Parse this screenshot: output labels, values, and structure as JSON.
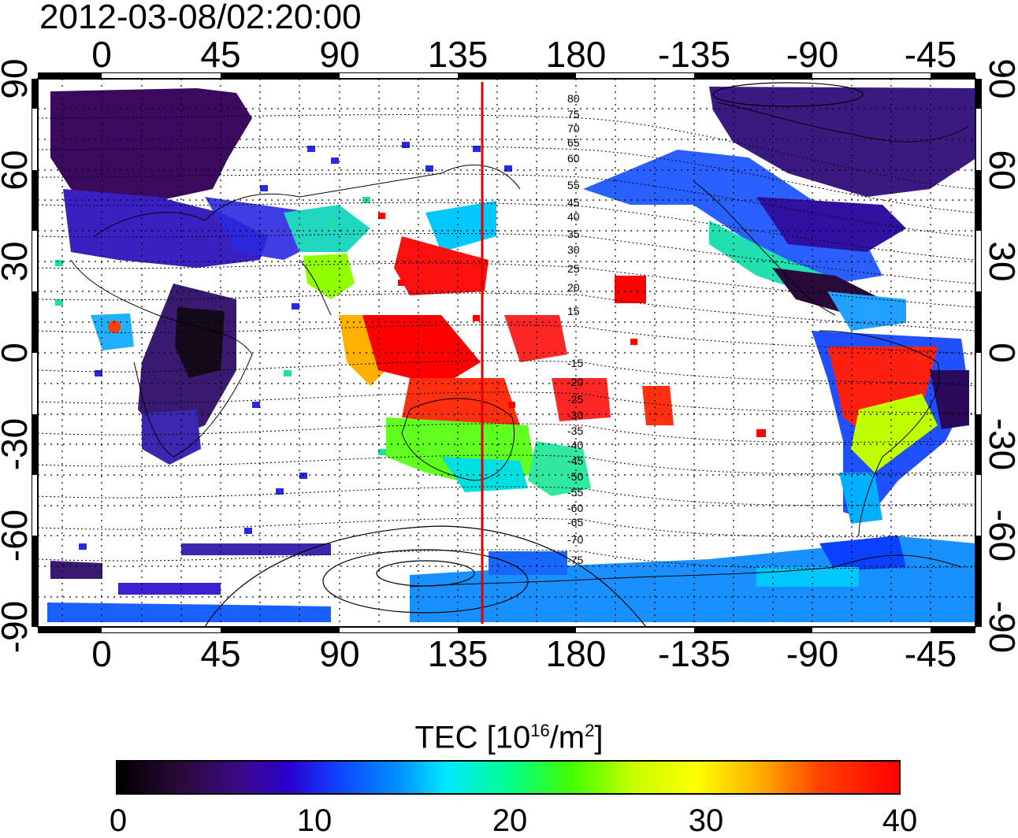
{
  "title": "2012-03-08/02:20:00",
  "lon_ticks": [
    "0",
    "45",
    "90",
    "135",
    "180",
    "-135",
    "-90",
    "-45"
  ],
  "lat_ticks": [
    "90",
    "60",
    "30",
    "0",
    "-30",
    "-60",
    "-90"
  ],
  "magnetic_lat_labels": [
    "80",
    "75",
    "70",
    "65",
    "60",
    "55",
    "45",
    "40",
    "35",
    "30",
    "25",
    "20",
    "15",
    "-15",
    "-20",
    "-25",
    "-30",
    "-35",
    "-40",
    "-45",
    "-50",
    "-55",
    "-60",
    "-65",
    "-70",
    "-75"
  ],
  "terminator_longitude": 145,
  "colorbar": {
    "title": "TEC  [10",
    "exponent": "16",
    "unit_mid": "/m",
    "unit_exp": "2",
    "unit_close": "]",
    "min": 0,
    "max": 40,
    "labels": [
      "0",
      "10",
      "20",
      "30",
      "40"
    ]
  },
  "colors": {
    "terminator": "#e00000",
    "frame": "#000000"
  }
}
